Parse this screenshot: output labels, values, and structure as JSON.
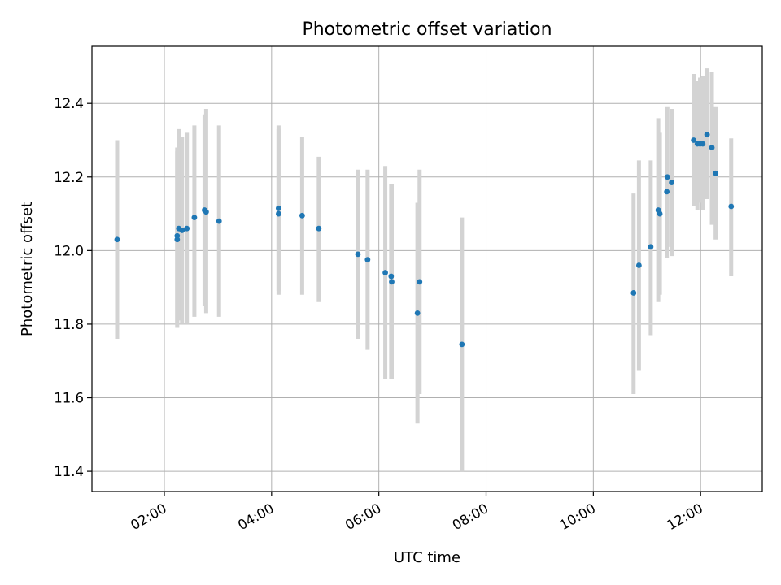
{
  "chart_data": {
    "type": "scatter",
    "title": "Photometric offset variation",
    "xlabel": "UTC time",
    "ylabel": "Photometric offset",
    "xlim_hours": [
      0.65,
      13.15
    ],
    "ylim": [
      11.345,
      12.555
    ],
    "grid": true,
    "x_ticks": [
      {
        "value": 2,
        "label": "02:00"
      },
      {
        "value": 4,
        "label": "04:00"
      },
      {
        "value": 6,
        "label": "06:00"
      },
      {
        "value": 8,
        "label": "08:00"
      },
      {
        "value": 10,
        "label": "10:00"
      },
      {
        "value": 12,
        "label": "12:00"
      }
    ],
    "y_ticks": [
      {
        "value": 11.4,
        "label": "11.4"
      },
      {
        "value": 11.6,
        "label": "11.6"
      },
      {
        "value": 11.8,
        "label": "11.8"
      },
      {
        "value": 12.0,
        "label": "12.0"
      },
      {
        "value": 12.2,
        "label": "12.2"
      },
      {
        "value": 12.4,
        "label": "12.4"
      }
    ],
    "colors": {
      "point": "#1f77b4",
      "errorbar": "#d3d3d3",
      "grid": "#b0b0b0"
    },
    "points": [
      {
        "t": 1.12,
        "y": 12.03,
        "lo": 11.76,
        "hi": 12.3
      },
      {
        "t": 2.24,
        "y": 12.03,
        "lo": 11.79,
        "hi": 12.28
      },
      {
        "t": 2.24,
        "y": 12.04,
        "lo": 11.8,
        "hi": 12.27
      },
      {
        "t": 2.27,
        "y": 12.06,
        "lo": 11.81,
        "hi": 12.33
      },
      {
        "t": 2.33,
        "y": 12.055,
        "lo": 11.8,
        "hi": 12.31
      },
      {
        "t": 2.42,
        "y": 12.06,
        "lo": 11.8,
        "hi": 12.32
      },
      {
        "t": 2.56,
        "y": 12.09,
        "lo": 11.82,
        "hi": 12.34
      },
      {
        "t": 2.75,
        "y": 12.11,
        "lo": 11.85,
        "hi": 12.37
      },
      {
        "t": 2.78,
        "y": 12.105,
        "lo": 11.83,
        "hi": 12.385
      },
      {
        "t": 3.02,
        "y": 12.08,
        "lo": 11.82,
        "hi": 12.34
      },
      {
        "t": 4.13,
        "y": 12.115,
        "lo": 11.89,
        "hi": 12.34
      },
      {
        "t": 4.13,
        "y": 12.1,
        "lo": 11.88,
        "hi": 12.33
      },
      {
        "t": 4.57,
        "y": 12.095,
        "lo": 11.88,
        "hi": 12.31
      },
      {
        "t": 4.88,
        "y": 12.06,
        "lo": 11.86,
        "hi": 12.255
      },
      {
        "t": 5.61,
        "y": 11.99,
        "lo": 11.76,
        "hi": 12.22
      },
      {
        "t": 5.79,
        "y": 11.975,
        "lo": 11.73,
        "hi": 12.22
      },
      {
        "t": 6.12,
        "y": 11.94,
        "lo": 11.65,
        "hi": 12.23
      },
      {
        "t": 6.23,
        "y": 11.93,
        "lo": 11.65,
        "hi": 12.18
      },
      {
        "t": 6.24,
        "y": 11.915,
        "lo": 11.65,
        "hi": 12.18
      },
      {
        "t": 6.72,
        "y": 11.83,
        "lo": 11.53,
        "hi": 12.13
      },
      {
        "t": 6.76,
        "y": 11.915,
        "lo": 11.61,
        "hi": 12.22
      },
      {
        "t": 7.55,
        "y": 11.745,
        "lo": 11.4,
        "hi": 12.09
      },
      {
        "t": 10.75,
        "y": 11.885,
        "lo": 11.61,
        "hi": 12.155
      },
      {
        "t": 10.85,
        "y": 11.96,
        "lo": 11.675,
        "hi": 12.245
      },
      {
        "t": 11.07,
        "y": 12.01,
        "lo": 11.77,
        "hi": 12.245
      },
      {
        "t": 11.21,
        "y": 12.11,
        "lo": 11.86,
        "hi": 12.36
      },
      {
        "t": 11.24,
        "y": 12.1,
        "lo": 11.88,
        "hi": 12.32
      },
      {
        "t": 11.37,
        "y": 12.16,
        "lo": 11.98,
        "hi": 12.34
      },
      {
        "t": 11.38,
        "y": 12.2,
        "lo": 12.01,
        "hi": 12.39
      },
      {
        "t": 11.46,
        "y": 12.185,
        "lo": 11.985,
        "hi": 12.385
      },
      {
        "t": 11.87,
        "y": 12.3,
        "lo": 12.12,
        "hi": 12.48
      },
      {
        "t": 11.94,
        "y": 12.29,
        "lo": 12.11,
        "hi": 12.46
      },
      {
        "t": 11.99,
        "y": 12.29,
        "lo": 12.13,
        "hi": 12.47
      },
      {
        "t": 12.04,
        "y": 12.29,
        "lo": 12.11,
        "hi": 12.475
      },
      {
        "t": 12.12,
        "y": 12.315,
        "lo": 12.14,
        "hi": 12.495
      },
      {
        "t": 12.21,
        "y": 12.28,
        "lo": 12.07,
        "hi": 12.485
      },
      {
        "t": 12.28,
        "y": 12.21,
        "lo": 12.03,
        "hi": 12.39
      },
      {
        "t": 12.57,
        "y": 12.12,
        "lo": 11.93,
        "hi": 12.305
      }
    ]
  }
}
